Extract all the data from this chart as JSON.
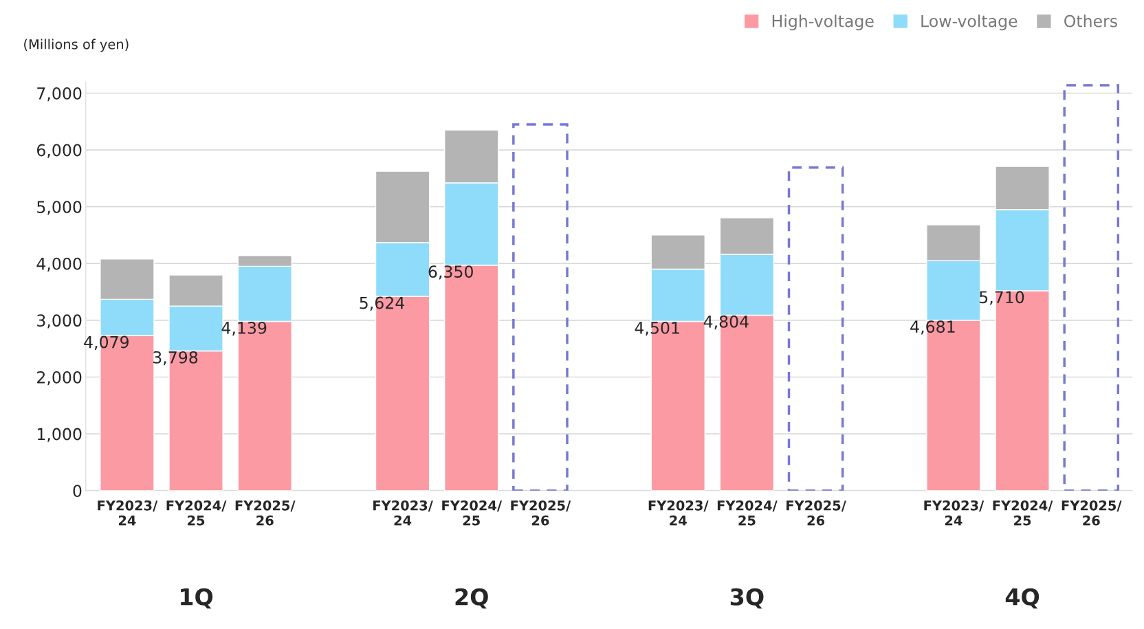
{
  "chart_data": {
    "type": "bar",
    "stacked": true,
    "ylabel": "(Millions of yen)",
    "categories": [
      "FY2023/\n24",
      "FY2024/\n25",
      "FY2025/\n26",
      null,
      "FY2023/\n24",
      "FY2024/\n25",
      "FY2025/\n26",
      null,
      "FY2023/\n24",
      "FY2024/\n25",
      "FY2025/\n26",
      null,
      "FY2023/\n24",
      "FY2024/\n25",
      "FY2025/\n26"
    ],
    "series": [
      {
        "name": "High-voltage",
        "color": "#fc9aa3",
        "values": [
          2730,
          2460,
          2980,
          null,
          3420,
          3970,
          null,
          null,
          2980,
          3090,
          null,
          null,
          3000,
          3520,
          null
        ]
      },
      {
        "name": "Low-voltage",
        "color": "#8fdcfa",
        "values": [
          640,
          790,
          970,
          null,
          950,
          1450,
          null,
          null,
          920,
          1070,
          null,
          null,
          1050,
          1430,
          null
        ]
      },
      {
        "name": "Others",
        "color": "#b4b4b4",
        "values": [
          709,
          548,
          189,
          null,
          1254,
          930,
          null,
          null,
          601,
          644,
          null,
          null,
          631,
          760,
          null
        ]
      },
      {
        "color": "#7777d4",
        "line_style": "dashed",
        "values": [
          null,
          null,
          null,
          null,
          null,
          null,
          6450,
          null,
          null,
          null,
          5690,
          null,
          null,
          null,
          7140
        ]
      }
    ],
    "totals": [
      "4,079",
      "3,798",
      "4,139",
      null,
      "5,624",
      "6,350",
      null,
      null,
      "4,501",
      "4,804",
      null,
      null,
      "4,681",
      "5,710",
      null
    ],
    "annotations": [
      "1Q",
      "2Q",
      "3Q",
      "4Q"
    ],
    "ylim": [
      0,
      7200
    ],
    "yticks": [
      0,
      {
        "value": 1000,
        "label": "1,000"
      },
      {
        "value": 2000,
        "label": "2,000"
      },
      {
        "value": 3000,
        "label": "3,000"
      },
      {
        "value": 4000,
        "label": "4,000"
      },
      {
        "value": 5000,
        "label": "5,000"
      },
      {
        "value": 6000,
        "label": "6,000"
      },
      {
        "value": 7000,
        "label": "7,000"
      }
    ],
    "grid": "y",
    "legend": "top right"
  }
}
